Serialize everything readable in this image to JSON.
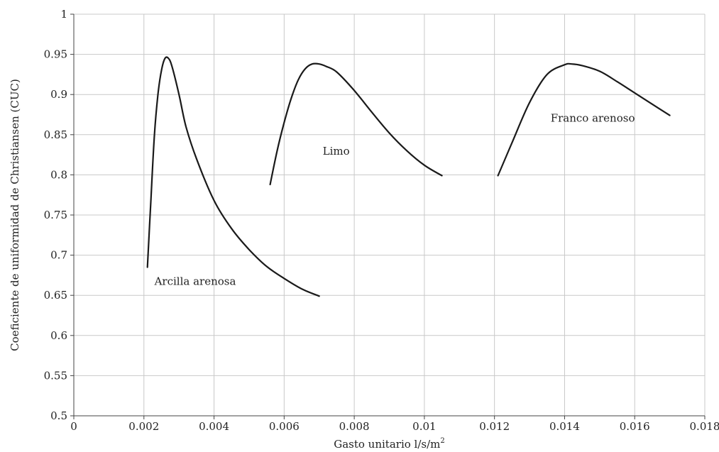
{
  "chart_data": {
    "type": "line",
    "title": "",
    "xlabel": "Gasto unitario l/s/m",
    "xlabel_sup": "2",
    "ylabel": "Coeficiente de uniformidad de Christiansen (CUC)",
    "xlim": [
      0,
      0.018
    ],
    "ylim": [
      0.5,
      1
    ],
    "grid": true,
    "x_ticks": [
      0,
      0.002,
      0.004,
      0.006,
      0.008,
      0.01,
      0.012,
      0.014,
      0.016,
      0.018
    ],
    "x_tick_labels": [
      "0",
      "0.002",
      "0.004",
      "0.006",
      "0.008",
      "0.01",
      "0.012",
      "0.014",
      "0.016",
      "0.018"
    ],
    "y_ticks": [
      0.5,
      0.55,
      0.6,
      0.65,
      0.7,
      0.75,
      0.8,
      0.85,
      0.9,
      0.95,
      1
    ],
    "y_tick_labels": [
      "0.5",
      "0.55",
      "0.6",
      "0.65",
      "0.7",
      "0.75",
      "0.8",
      "0.85",
      "0.9",
      "0.95",
      "1"
    ],
    "series": [
      {
        "name": "Arcilla arenosa",
        "label_at": [
          0.0023,
          0.663
        ],
        "x": [
          0.0021,
          0.0022,
          0.0023,
          0.0024,
          0.0025,
          0.0026,
          0.0027,
          0.0028,
          0.003,
          0.0032,
          0.0035,
          0.004,
          0.0045,
          0.005,
          0.0055,
          0.006,
          0.0065,
          0.007
        ],
        "y": [
          0.685,
          0.77,
          0.85,
          0.9,
          0.93,
          0.945,
          0.945,
          0.935,
          0.9,
          0.86,
          0.82,
          0.768,
          0.733,
          0.707,
          0.686,
          0.671,
          0.658,
          0.649
        ]
      },
      {
        "name": "Limo",
        "label_at": [
          0.0071,
          0.825
        ],
        "x": [
          0.0056,
          0.0058,
          0.006,
          0.0062,
          0.0064,
          0.0066,
          0.0068,
          0.007,
          0.0072,
          0.0075,
          0.008,
          0.0085,
          0.009,
          0.0095,
          0.01,
          0.0105
        ],
        "y": [
          0.788,
          0.83,
          0.865,
          0.895,
          0.918,
          0.932,
          0.938,
          0.938,
          0.935,
          0.928,
          0.905,
          0.878,
          0.852,
          0.83,
          0.812,
          0.799
        ]
      },
      {
        "name": "Franco arenoso",
        "label_at": [
          0.0136,
          0.866
        ],
        "x": [
          0.0121,
          0.0125,
          0.013,
          0.0135,
          0.014,
          0.0142,
          0.0145,
          0.015,
          0.0155,
          0.016,
          0.0165,
          0.017
        ],
        "y": [
          0.799,
          0.84,
          0.89,
          0.925,
          0.937,
          0.938,
          0.936,
          0.929,
          0.916,
          0.902,
          0.888,
          0.874
        ]
      }
    ]
  }
}
